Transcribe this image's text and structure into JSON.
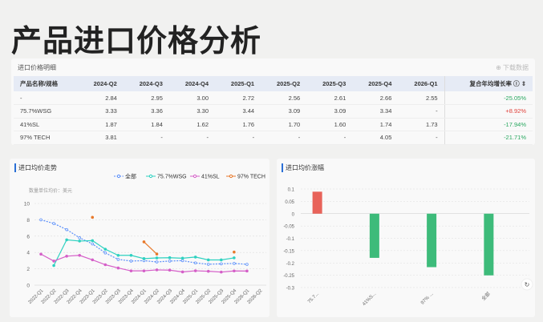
{
  "page_title": "产品进口价格分析",
  "table": {
    "caption": "进口价格明细",
    "download": "下载数据",
    "headers": [
      "产品名称/规格",
      "2024-Q2",
      "2024-Q3",
      "2024-Q4",
      "2025-Q1",
      "2025-Q2",
      "2025-Q3",
      "2025-Q4",
      "2026-Q1",
      "复合年均增长率 ⓘ ⇕"
    ],
    "rows": [
      [
        "-",
        "2.84",
        "2.95",
        "3.00",
        "2.72",
        "2.56",
        "2.61",
        "2.66",
        "2.55",
        "-25.05%"
      ],
      [
        "75.7%WSG",
        "3.33",
        "3.36",
        "3.30",
        "3.44",
        "3.09",
        "3.09",
        "3.34",
        "-",
        "+8.92%"
      ],
      [
        "41%SL",
        "1.87",
        "1.84",
        "1.62",
        "1.76",
        "1.70",
        "1.60",
        "1.74",
        "1.73",
        "-17.94%"
      ],
      [
        "97% TECH",
        "3.81",
        "-",
        "-",
        "-",
        "-",
        "-",
        "4.05",
        "-",
        "-21.71%"
      ]
    ]
  },
  "chart_data": [
    {
      "type": "line",
      "title": "进口均价走势",
      "subtitle": "数量单位均价：美元",
      "ylim": [
        0,
        10
      ],
      "yticks": [
        0,
        2,
        4,
        6,
        8,
        10
      ],
      "grid": true,
      "legend": "top-right",
      "categories": [
        "2022-Q1",
        "2022-Q2",
        "2022-Q3",
        "2022-Q4",
        "2023-Q1",
        "2023-Q2",
        "2023-Q3",
        "2023-Q4",
        "2024-Q1",
        "2024-Q2",
        "2024-Q3",
        "2024-Q4",
        "2025-Q1",
        "2025-Q2",
        "2025-Q3",
        "2025-Q4",
        "2026-Q1",
        "2026-Q2"
      ],
      "series": [
        {
          "name": "全部",
          "color": "#5b8ff9",
          "dashed": true,
          "values": [
            8.0,
            7.55,
            6.8,
            5.8,
            5.05,
            3.95,
            3.15,
            2.95,
            3.0,
            2.84,
            2.95,
            3.0,
            2.72,
            2.56,
            2.61,
            2.66,
            2.55,
            null
          ]
        },
        {
          "name": "75.7%WSG",
          "color": "#2ed1c0",
          "values": [
            null,
            2.4,
            5.55,
            5.4,
            5.45,
            4.4,
            3.65,
            3.65,
            3.25,
            3.33,
            3.36,
            3.3,
            3.44,
            3.09,
            3.09,
            3.34,
            null,
            null
          ]
        },
        {
          "name": "41%SL",
          "color": "#d55fc8",
          "values": [
            3.8,
            2.95,
            3.55,
            3.65,
            3.1,
            2.5,
            2.1,
            1.75,
            1.75,
            1.87,
            1.84,
            1.62,
            1.76,
            1.7,
            1.6,
            1.74,
            1.73,
            null
          ]
        },
        {
          "name": "97% TECH",
          "color": "#e8782a",
          "values": [
            null,
            null,
            null,
            null,
            8.3,
            null,
            null,
            null,
            5.3,
            3.81,
            null,
            null,
            null,
            null,
            null,
            4.05,
            null,
            null
          ]
        }
      ]
    },
    {
      "type": "bar",
      "title": "进口均价涨幅",
      "ylim": [
        -0.3,
        0.1
      ],
      "yticks": [
        0.1,
        0.05,
        0,
        -0.05,
        -0.1,
        -0.15,
        -0.2,
        -0.25,
        -0.3
      ],
      "grid": true,
      "categories": [
        "75.7...",
        "41%S...",
        "97% ...",
        "全部"
      ],
      "values": [
        0.0892,
        -0.1794,
        -0.2171,
        -0.2505
      ],
      "colors": {
        "positive": "#e8635a",
        "negative": "#3dbb7a"
      }
    }
  ]
}
